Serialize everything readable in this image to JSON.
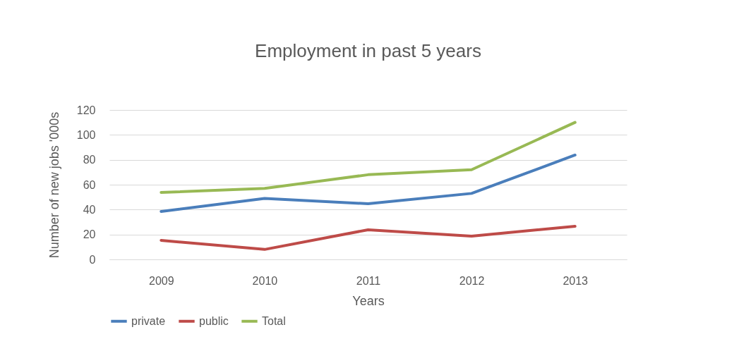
{
  "chart_data": {
    "type": "line",
    "title": "Employment in past 5 years",
    "xlabel": "Years",
    "ylabel": "Number of new jobs '000s",
    "categories": [
      "2009",
      "2010",
      "2011",
      "2012",
      "2013"
    ],
    "series": [
      {
        "name": "private",
        "color": "#4a7ebb",
        "values": [
          38.5,
          49,
          44.7,
          53,
          83.8
        ]
      },
      {
        "name": "public",
        "color": "#be4b48",
        "values": [
          15.3,
          8,
          23.8,
          18.7,
          26.6
        ]
      },
      {
        "name": "Total",
        "color": "#98b954",
        "values": [
          53.8,
          57,
          68,
          72,
          110
        ]
      }
    ],
    "ylim": [
      0,
      120
    ],
    "yticks": [
      0,
      20,
      40,
      60,
      80,
      100,
      120
    ],
    "grid": "y",
    "legend": "bottom",
    "marker": "none",
    "line_style": "solid"
  }
}
